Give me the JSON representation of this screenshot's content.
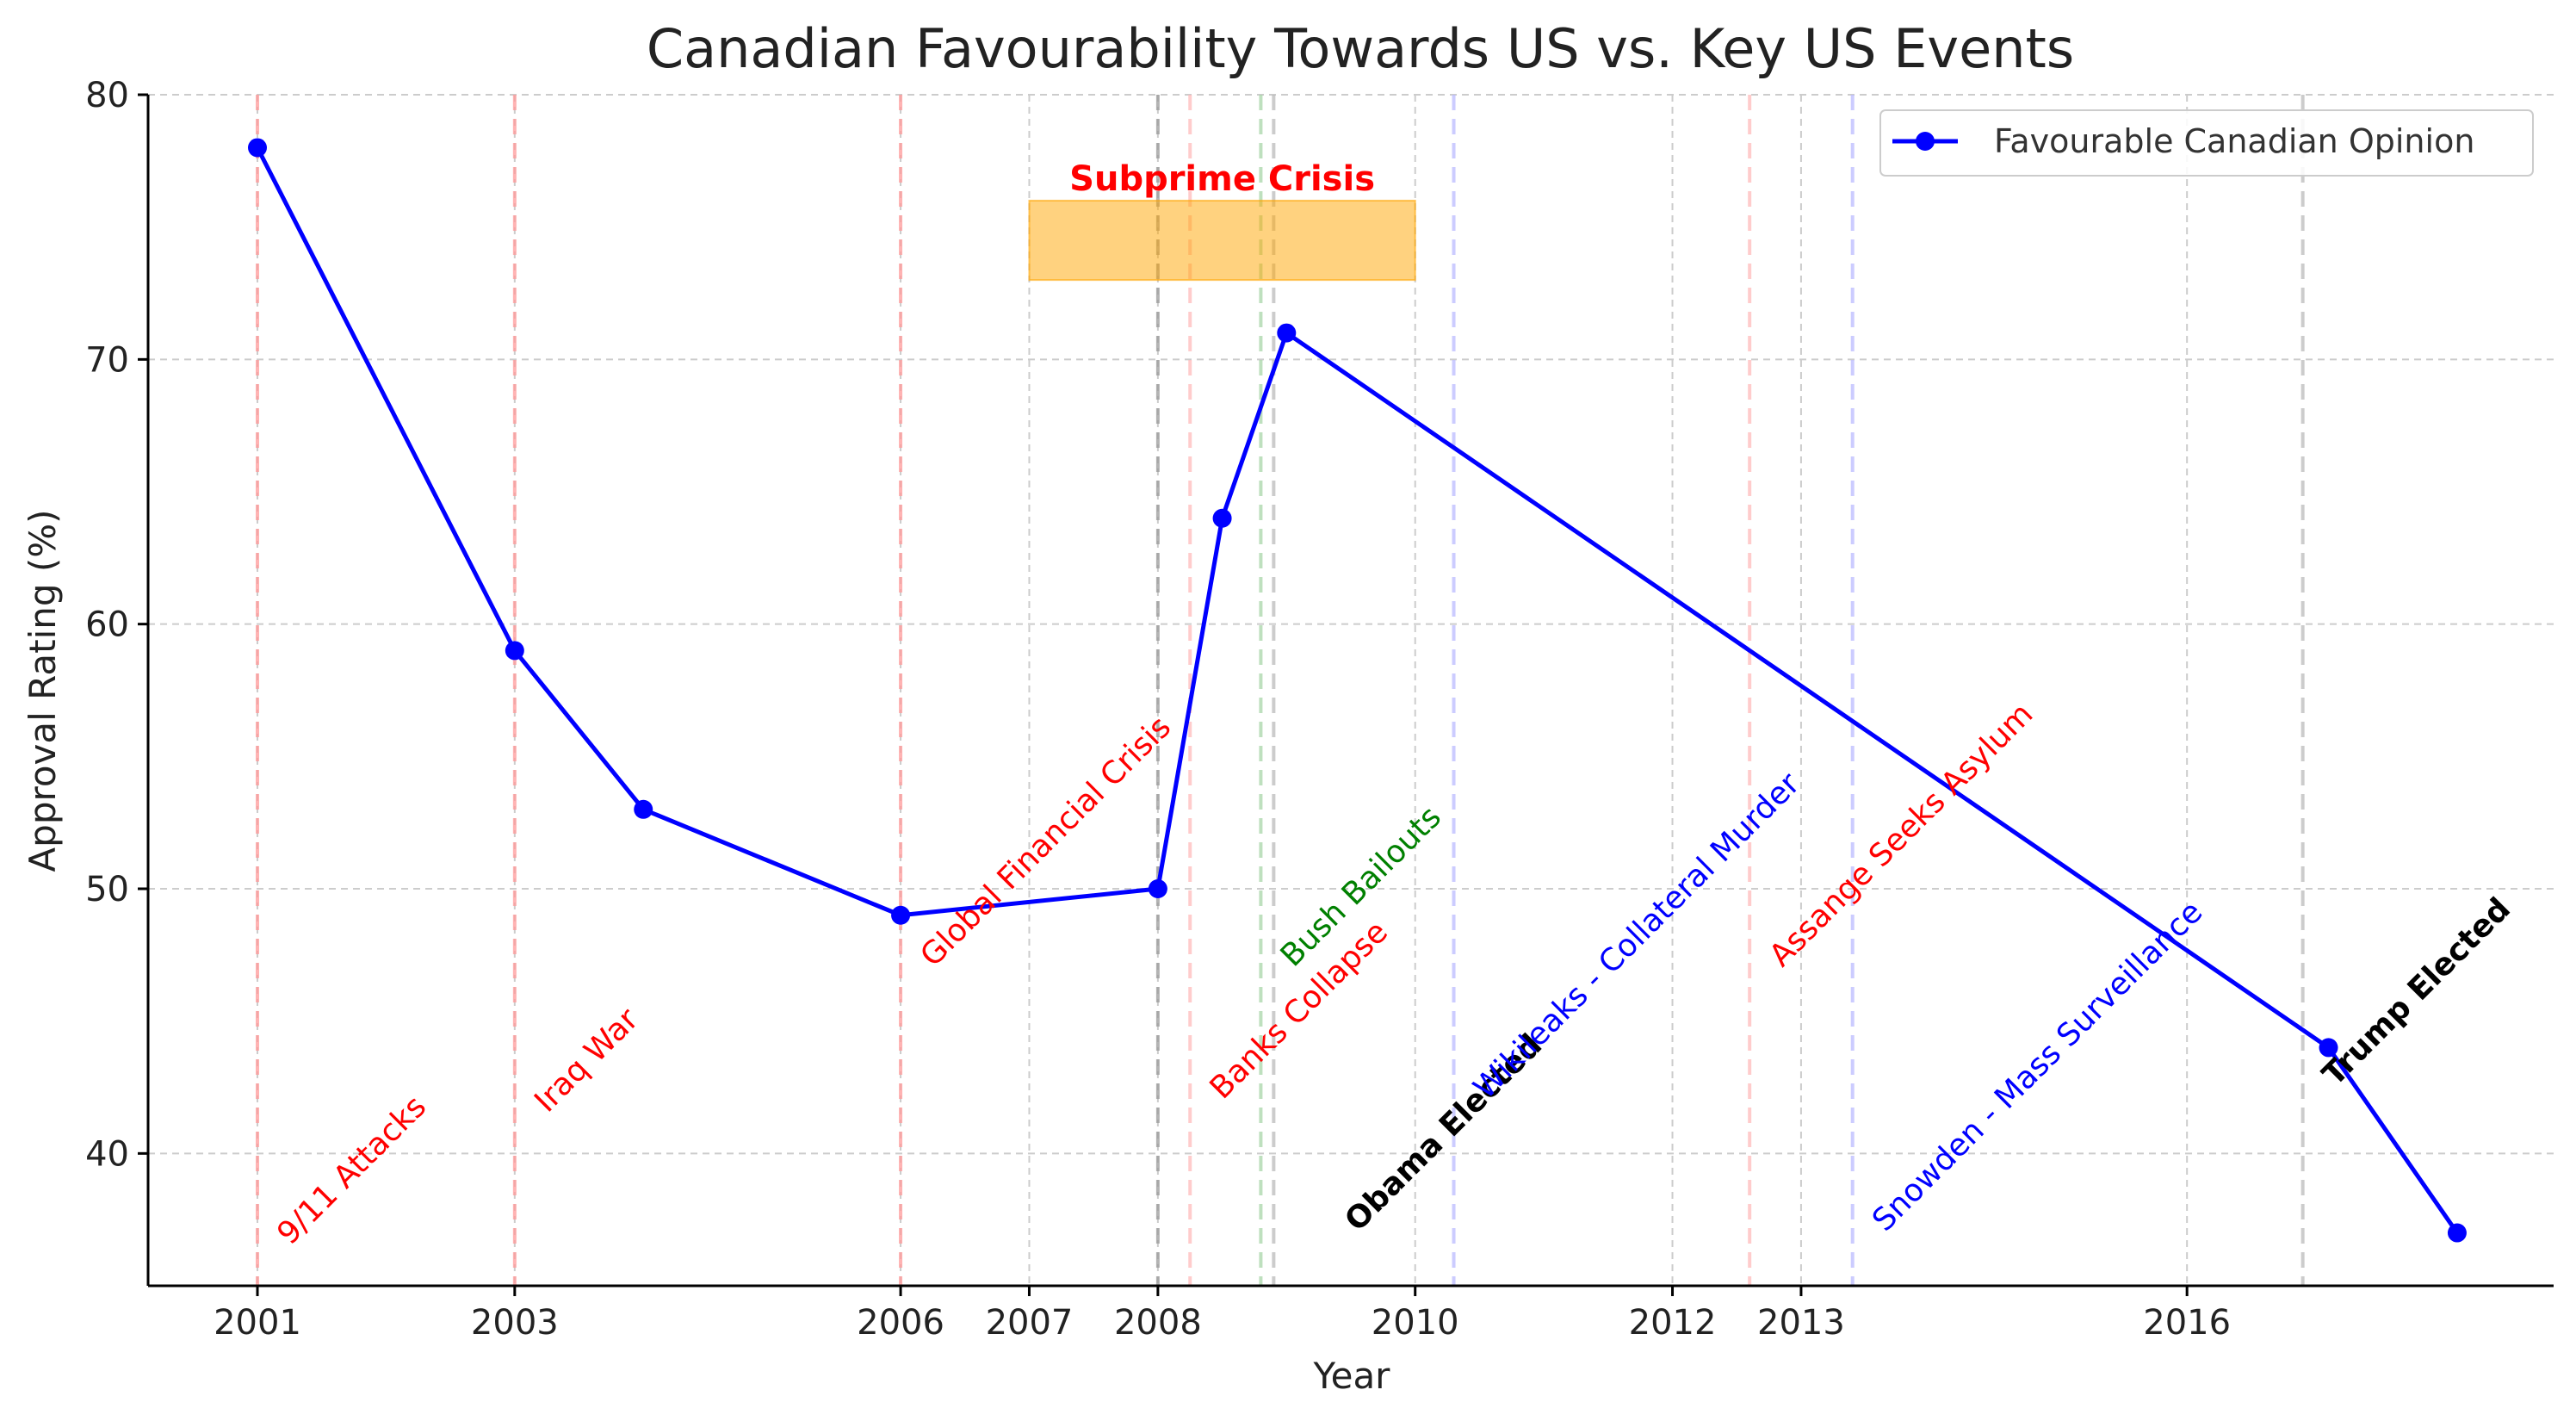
{
  "chart_data": {
    "type": "line",
    "title": "Canadian Favourability Towards US vs. Key US Events",
    "xlabel": "Year",
    "ylabel": "Approval Rating (%)",
    "xlim": [
      2000.15,
      2018.85
    ],
    "ylim": [
      35,
      80
    ],
    "x_ticks": [
      2001,
      2003,
      2006,
      2007,
      2008,
      2010,
      2012,
      2013,
      2016
    ],
    "y_ticks": [
      40,
      50,
      60,
      70,
      80
    ],
    "grid": true,
    "legend_position": "top-right",
    "series": [
      {
        "name": "Favourable Canadian Opinion",
        "color": "#0000ff",
        "points": [
          {
            "x": 2001,
            "y": 78
          },
          {
            "x": 2003,
            "y": 59
          },
          {
            "x": 2004,
            "y": 53
          },
          {
            "x": 2006,
            "y": 49
          },
          {
            "x": 2008,
            "y": 50
          },
          {
            "x": 2008.5,
            "y": 64
          },
          {
            "x": 2009,
            "y": 71
          },
          {
            "x": 2017.1,
            "y": 44
          },
          {
            "x": 2018.1,
            "y": 37
          }
        ]
      }
    ],
    "events": [
      {
        "x": 2001,
        "label": "9/11 Attacks",
        "color": "#ff0000",
        "label_y": 36.5
      },
      {
        "x": 2003,
        "label": "Iraq War",
        "color": "#ff0000",
        "label_y": 41.5
      },
      {
        "x": 2006,
        "label": "Global Financial Crisis",
        "color": "#ff0000",
        "label_y": 47
      },
      {
        "x": 2008.25,
        "label": "Banks Collapse",
        "color": "#ff0000",
        "label_y": 42
      },
      {
        "x": 2008.8,
        "label": "Bush Bailouts",
        "color": "#008000",
        "label_y": 47
      },
      {
        "x": 2009.3,
        "label": "Obama Elected",
        "color": "#000000",
        "bold": true,
        "label_y": 37
      },
      {
        "x": 2010.3,
        "label": "Wikileaks - Collateral Murder",
        "color": "#0000ff",
        "label_y": 42
      },
      {
        "x": 2012.6,
        "label": "Assange Seeks Asylum",
        "color": "#ff0000",
        "label_y": 47
      },
      {
        "x": 2013.4,
        "label": "Snowden - Mass Surveillance",
        "color": "#0000ff",
        "label_y": 37
      },
      {
        "x": 2016.9,
        "label": "Trump Elected",
        "color": "#000000",
        "bold": true,
        "label_y": 42.5
      }
    ],
    "event_lines": [
      {
        "x": 2001,
        "color": "#ff9999"
      },
      {
        "x": 2003,
        "color": "#ff9999"
      },
      {
        "x": 2006,
        "color": "#ff9999"
      },
      {
        "x": 2008,
        "color": "#999999"
      },
      {
        "x": 2008.25,
        "color": "#ffbbbb"
      },
      {
        "x": 2008.8,
        "color": "#a8d5a8"
      },
      {
        "x": 2008.9,
        "color": "#bbbbbb"
      },
      {
        "x": 2010.3,
        "color": "#bbbbff"
      },
      {
        "x": 2012.6,
        "color": "#ffbbbb"
      },
      {
        "x": 2013.4,
        "color": "#bbbbff"
      },
      {
        "x": 2016.9,
        "color": "#bbbbbb"
      }
    ],
    "region": {
      "label": "Subprime Crisis",
      "x0": 2007,
      "x1": 2010,
      "y0": 73,
      "y1": 76,
      "fill": "#ffa500",
      "label_color": "#ff0000"
    }
  }
}
